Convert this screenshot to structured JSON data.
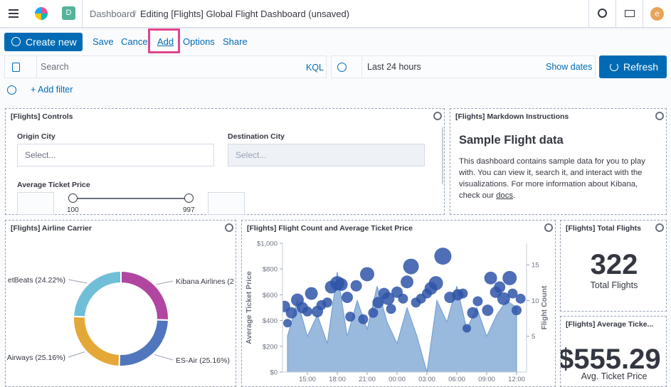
{
  "header": {
    "logo": "D",
    "crumbs": [
      "Dashboard",
      "Editing [Flights] Global Flight Dashboard (unsaved)"
    ],
    "user": "e"
  },
  "toolbar": {
    "create_new": "Create new",
    "links": [
      "Save",
      "Cancel",
      "Add",
      "Options",
      "Share"
    ]
  },
  "query": {
    "search": "Search",
    "language": "KQL",
    "time": "Last 24 hours",
    "show_dates": "Show dates",
    "refresh": "Refresh",
    "add_filter": "+ Add filter"
  },
  "panels": {
    "controls": {
      "title": "[Flights] Controls",
      "origin_label": "Origin City",
      "origin_placeholder": "Select...",
      "destination_label": "Destination City",
      "destination_placeholder": "Select...",
      "price_label": "Average Ticket Price",
      "price_min": "100",
      "price_max": "997"
    },
    "markdown": {
      "title": "[Flights] Markdown Instructions",
      "heading": "Sample Flight data",
      "body": "This dashboard contains sample data for you to play with. You can view it, search it, and interact with the visualizations. For more information about Kibana, check our ",
      "link": "docs",
      "body_end": "."
    },
    "airline": {
      "title": "[Flights] Airline Carrier",
      "chart_data": {
        "type": "pie",
        "categories": [
          "Kibana Airlines (2",
          "ES-Air (25.16%)",
          "Airways (25.16%)",
          "etBeats (24.22%)"
        ],
        "values": [
          25.46,
          25.16,
          25.16,
          24.22
        ],
        "colors": [
          "#b0469f",
          "#5077bd",
          "#e4a838",
          "#6fbfd8"
        ],
        "donut": true
      }
    },
    "flights": {
      "title": "[Flights] Flight Count and Average Ticket Price",
      "chart_data": {
        "type": "combo",
        "y_label": "Average Ticket Price",
        "y2_label": "Flight Count",
        "xlim": [
          12.5,
          37
        ],
        "xticks": [
          {
            "value": 15,
            "label": "15:00"
          },
          {
            "value": 18,
            "label": "18:00"
          },
          {
            "value": 21,
            "label": "21:00"
          },
          {
            "value": 24,
            "label": "00:00"
          },
          {
            "value": 27,
            "label": "03:00"
          },
          {
            "value": 30,
            "label": "06:00"
          },
          {
            "value": 33,
            "label": "09:00"
          },
          {
            "value": 36,
            "label": "12:00"
          }
        ],
        "ylim": [
          0,
          1000
        ],
        "yticks": [
          {
            "value": 0,
            "label": "$0"
          },
          {
            "value": 200,
            "label": "$200"
          },
          {
            "value": 400,
            "label": "$400"
          },
          {
            "value": 600,
            "label": "$600"
          },
          {
            "value": 800,
            "label": "$800"
          },
          {
            "value": 1000,
            "label": "$1,000"
          }
        ],
        "y2lim": [
          0,
          18
        ],
        "y2ticks": [
          5,
          10,
          15
        ],
        "series": [
          {
            "kind": "area",
            "axis": "y2",
            "color": "#6e9bcf",
            "x": [
              13,
              14,
              15,
              16,
              17,
              18,
              19,
              20,
              21,
              22,
              23,
              24,
              25,
              26,
              27,
              28,
              29,
              30,
              31,
              32,
              33,
              34,
              35,
              36
            ],
            "values": [
              5,
              10,
              5,
              8,
              4,
              14,
              5,
              10,
              6,
              12,
              7,
              4,
              9,
              5,
              0,
              10,
              7,
              12,
              6,
              9,
              5,
              8,
              10,
              9
            ]
          },
          {
            "kind": "bubble",
            "color": "#2f55a8",
            "x": [
              12.7,
              13.0,
              13.4,
              14.0,
              14.5,
              15.0,
              15.4,
              16.0,
              16.4,
              17.0,
              17.4,
              18.0,
              18.4,
              19.0,
              19.3,
              19.9,
              20.6,
              21.0,
              21.6,
              22.1,
              22.7,
              23.1,
              23.4,
              24.0,
              24.6,
              25.0,
              25.4,
              25.9,
              26.4,
              27.0,
              27.4,
              27.9,
              28.6,
              29.3,
              30.1,
              30.6,
              31.0,
              31.6,
              32.1,
              33.1,
              33.4,
              33.9,
              34.3,
              34.7,
              35.3,
              35.6,
              36.0,
              36.4
            ],
            "values": [
              510,
              380,
              460,
              560,
              500,
              470,
              610,
              470,
              520,
              540,
              660,
              690,
              680,
              580,
              430,
              670,
              410,
              760,
              460,
              540,
              610,
              570,
              490,
              620,
              570,
              700,
              820,
              540,
              570,
              610,
              650,
              690,
              900,
              580,
              600,
              610,
              340,
              460,
              550,
              480,
              730,
              620,
              660,
              570,
              730,
              610,
              480,
              570
            ],
            "sizes": [
              8,
              6,
              8,
              9,
              8,
              7,
              9,
              8,
              7,
              7,
              9,
              10,
              9,
              8,
              7,
              8,
              7,
              10,
              7,
              8,
              8,
              9,
              7,
              8,
              7,
              9,
              11,
              7,
              7,
              7,
              9,
              10,
              12,
              8,
              8,
              7,
              6,
              8,
              7,
              8,
              9,
              8,
              8,
              9,
              10,
              7,
              7,
              7
            ]
          }
        ]
      }
    },
    "total": {
      "title": "[Flights] Total Flights",
      "value": "322",
      "label": "Total Flights"
    },
    "average": {
      "title": "[Flights] Average Ticke...",
      "value": "$555.29",
      "label": "Avg. Ticket Price"
    }
  }
}
